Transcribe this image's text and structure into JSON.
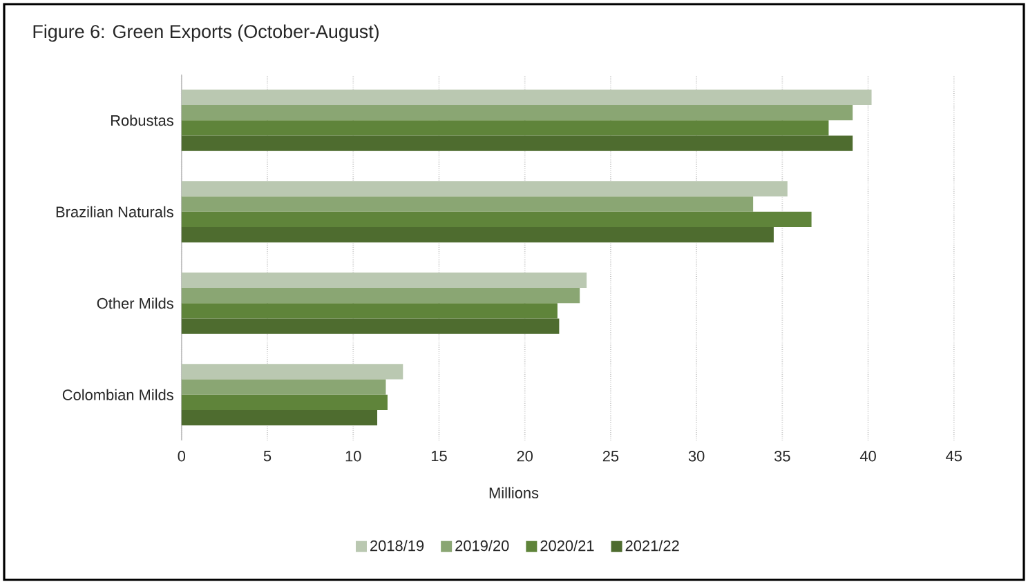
{
  "chart_data": {
    "type": "bar",
    "orientation": "horizontal",
    "title": "Figure 6: Green Exports (October-August)",
    "xlabel": "Millions",
    "categories": [
      "Robustas",
      "Brazilian Naturals",
      "Other Milds",
      "Colombian Milds"
    ],
    "series": [
      {
        "name": "2018/19",
        "color": "#bac8b1",
        "values": [
          40.2,
          35.3,
          23.6,
          12.9
        ]
      },
      {
        "name": "2019/20",
        "color": "#8aa673",
        "values": [
          39.1,
          33.3,
          23.2,
          11.9
        ]
      },
      {
        "name": "2020/21",
        "color": "#5f843a",
        "values": [
          37.7,
          36.7,
          21.9,
          12.0
        ]
      },
      {
        "name": "2021/22",
        "color": "#4e6c2f",
        "values": [
          39.1,
          34.5,
          22.0,
          11.4
        ]
      }
    ],
    "xlim": [
      0,
      45
    ],
    "xticks": [
      0,
      5,
      10,
      15,
      20,
      25,
      30,
      35,
      40,
      45
    ],
    "grid": "x",
    "legend": "bottom"
  }
}
